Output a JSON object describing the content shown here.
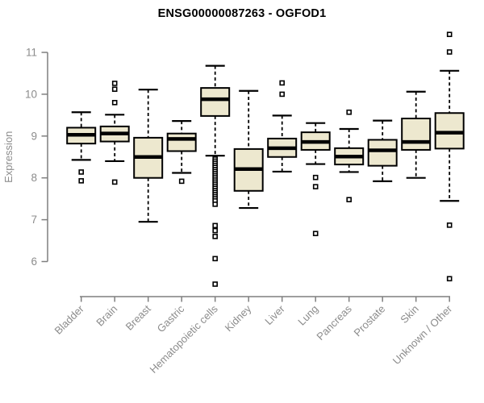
{
  "chart_data": {
    "type": "boxplot",
    "title": "ENSG00000087263 - OGFOD1",
    "ylabel": "Expression",
    "xlabel": "",
    "yticks": [
      6,
      7,
      8,
      9,
      10,
      11
    ],
    "ylim": [
      5.3,
      11.6
    ],
    "grid": false,
    "legend": false,
    "categories": [
      "Bladder",
      "Brain",
      "Breast",
      "Gastric",
      "Hematopoietic cells",
      "Kidney",
      "Liver",
      "Lung",
      "Pancreas",
      "Prostate",
      "Skin",
      "Unknown / Other"
    ],
    "series": [
      {
        "name": "Bladder",
        "whisker_low": 8.43,
        "q1": 8.82,
        "median": 9.03,
        "q3": 9.2,
        "whisker_high": 9.57,
        "outliers": [
          8.14,
          7.93
        ]
      },
      {
        "name": "Brain",
        "whisker_low": 8.4,
        "q1": 8.87,
        "median": 9.06,
        "q3": 9.23,
        "whisker_high": 9.51,
        "outliers": [
          10.26,
          10.12,
          9.8,
          7.9
        ]
      },
      {
        "name": "Breast",
        "whisker_low": 6.95,
        "q1": 8.0,
        "median": 8.5,
        "q3": 8.96,
        "whisker_high": 10.11,
        "outliers": []
      },
      {
        "name": "Gastric",
        "whisker_low": 8.12,
        "q1": 8.64,
        "median": 8.93,
        "q3": 9.06,
        "whisker_high": 9.36,
        "outliers": [
          7.92
        ]
      },
      {
        "name": "Hematopoietic cells",
        "whisker_low": 8.53,
        "q1": 9.48,
        "median": 9.88,
        "q3": 10.15,
        "whisker_high": 10.68,
        "outliers": [
          8.45,
          8.4,
          8.35,
          8.3,
          8.25,
          8.2,
          8.15,
          8.1,
          8.05,
          8.0,
          7.95,
          7.9,
          7.85,
          7.8,
          7.75,
          7.7,
          7.65,
          7.6,
          7.55,
          7.5,
          7.45,
          7.37,
          6.86,
          6.74,
          6.6,
          6.07,
          5.46
        ]
      },
      {
        "name": "Kidney",
        "whisker_low": 7.28,
        "q1": 7.69,
        "median": 8.21,
        "q3": 8.69,
        "whisker_high": 10.08,
        "outliers": []
      },
      {
        "name": "Liver",
        "whisker_low": 8.15,
        "q1": 8.5,
        "median": 8.71,
        "q3": 8.94,
        "whisker_high": 9.49,
        "outliers": [
          10.27,
          10.0
        ]
      },
      {
        "name": "Lung",
        "whisker_low": 8.33,
        "q1": 8.67,
        "median": 8.86,
        "q3": 9.09,
        "whisker_high": 9.31,
        "outliers": [
          8.01,
          7.79,
          6.67
        ]
      },
      {
        "name": "Pancreas",
        "whisker_low": 8.14,
        "q1": 8.32,
        "median": 8.51,
        "q3": 8.71,
        "whisker_high": 9.17,
        "outliers": [
          9.57,
          7.48
        ]
      },
      {
        "name": "Prostate",
        "whisker_low": 7.92,
        "q1": 8.29,
        "median": 8.66,
        "q3": 8.91,
        "whisker_high": 9.37,
        "outliers": []
      },
      {
        "name": "Skin",
        "whisker_low": 8.0,
        "q1": 8.67,
        "median": 8.86,
        "q3": 9.42,
        "whisker_high": 10.06,
        "outliers": []
      },
      {
        "name": "Unknown / Other",
        "whisker_low": 7.45,
        "q1": 8.7,
        "median": 9.08,
        "q3": 9.55,
        "whisker_high": 10.56,
        "outliers": [
          11.43,
          11.01,
          6.87,
          5.59
        ]
      }
    ],
    "colors": {
      "box_fill": "#EDE8CF",
      "box_stroke": "#000000",
      "median": "#000000",
      "outlier_fill": "#FFFFFF",
      "outlier_stroke": "#000000",
      "axis": "#7F7F7F",
      "tick_label": "#8C8C8C",
      "title": "#000000",
      "background": "#FFFFFF"
    }
  }
}
